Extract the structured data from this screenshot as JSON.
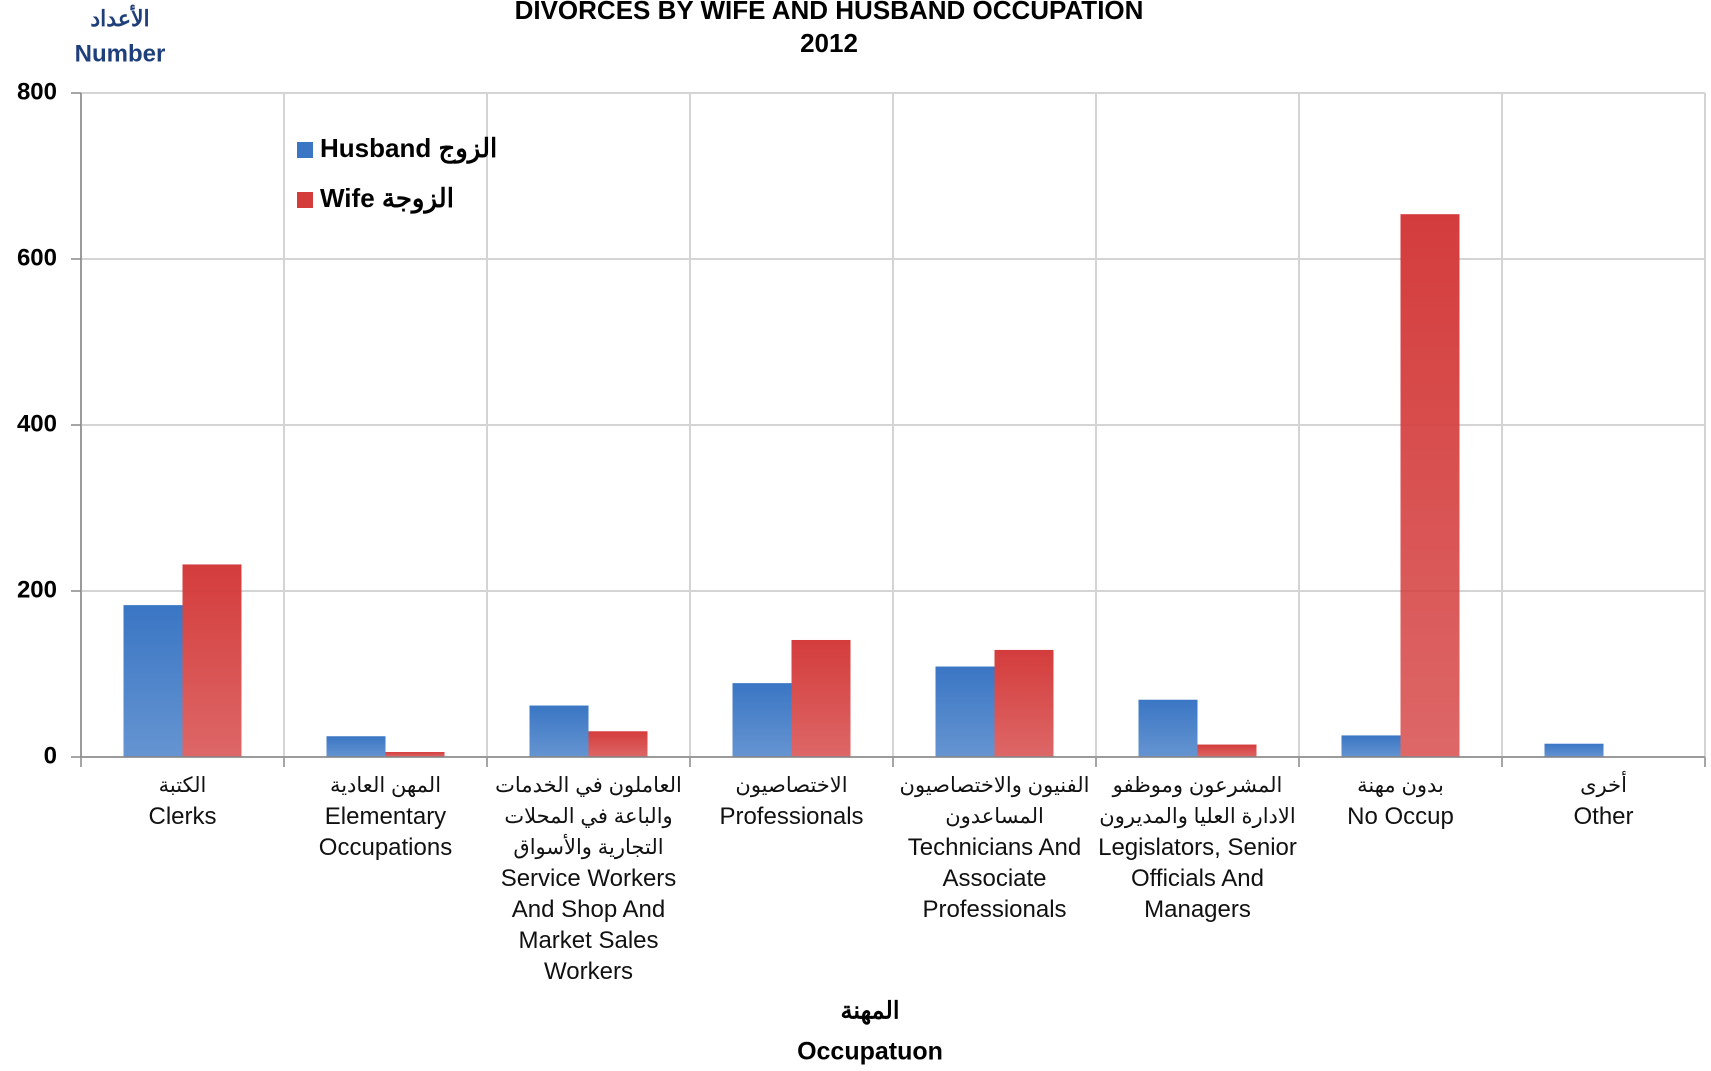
{
  "chart_data": {
    "type": "bar",
    "title": "DIVORCES BY WIFE AND HUSBAND OCCUPATION",
    "subtitle": "2012",
    "y_label_ar": "الأعداد",
    "y_label": "Number",
    "x_label_ar": "المهنة",
    "x_label": "Occupatuon",
    "categories_ar": [
      "الكتبة",
      "المهن العادية",
      "العاملون في الخدمات والباعة في المحلات التجارية والأسواق",
      "الاختصاصيون",
      "الفنيون والاختصاصيون المساعدون",
      "المشرعون وموظفو الادارة العليا والمديرون",
      "بدون مهنة",
      "أخرى"
    ],
    "categories": [
      "Clerks",
      "Elementary Occupations",
      "Service Workers And Shop And Market Sales Workers",
      "Professionals",
      "Technicians And Associate Professionals",
      "Legislators, Senior Officials And Managers",
      "No Occup",
      "Other"
    ],
    "series": [
      {
        "name": "Husband الزوج",
        "color": "#3a76c4",
        "values": [
          183,
          25,
          62,
          89,
          109,
          69,
          26,
          16
        ]
      },
      {
        "name": "Wife الزوجة",
        "color": "#d43c3c",
        "values": [
          232,
          6,
          31,
          141,
          129,
          15,
          654,
          0
        ]
      }
    ],
    "ylim": [
      0,
      800
    ],
    "yticks": [
      0,
      200,
      400,
      600,
      800
    ],
    "grid": true
  }
}
